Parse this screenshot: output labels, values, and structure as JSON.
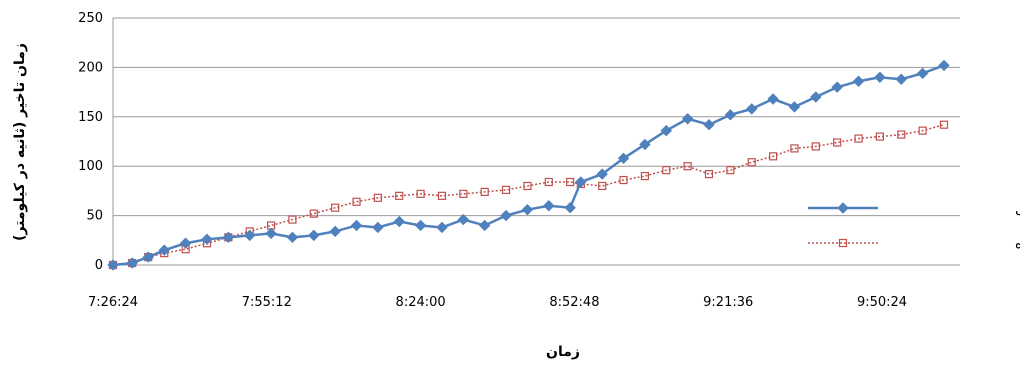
{
  "chart_data": {
    "type": "line",
    "xlabel": "زمان",
    "ylabel": "زمان تاخیر (ثانیه در کیلومتر)",
    "x_tick_labels": [
      "7:26:24",
      "7:55:12",
      "8:24:00",
      "8:52:48",
      "9:21:36",
      "9:50:24"
    ],
    "y_tick_labels": [
      "0",
      "50",
      "100",
      "150",
      "200",
      "250"
    ],
    "ylim": [
      0,
      250
    ],
    "xlim": [
      "7:26:24",
      "10:05:00"
    ],
    "grid": "horizontal",
    "legend_position": "right",
    "series": [
      {
        "name": "حالت بدون کنترل",
        "color": "#4F81BD",
        "marker": "diamond",
        "line": "solid",
        "x": [
          "7:26:24",
          "7:30:00",
          "7:33:00",
          "7:36:00",
          "7:40:00",
          "7:44:00",
          "7:48:00",
          "7:52:00",
          "7:56:00",
          "8:00:00",
          "8:04:00",
          "8:08:00",
          "8:12:00",
          "8:16:00",
          "8:20:00",
          "8:24:00",
          "8:28:00",
          "8:32:00",
          "8:36:00",
          "8:40:00",
          "8:44:00",
          "8:48:00",
          "8:52:00",
          "8:54:00",
          "8:58:00",
          "9:02:00",
          "9:06:00",
          "9:10:00",
          "9:14:00",
          "9:18:00",
          "9:22:00",
          "9:26:00",
          "9:30:00",
          "9:34:00",
          "9:38:00",
          "9:42:00",
          "9:46:00",
          "9:50:00",
          "9:54:00",
          "9:58:00",
          "10:02:00"
        ],
        "values": [
          0,
          2,
          8,
          15,
          22,
          26,
          28,
          30,
          32,
          28,
          30,
          34,
          40,
          38,
          44,
          40,
          38,
          46,
          40,
          50,
          56,
          60,
          58,
          84,
          92,
          108,
          122,
          136,
          148,
          142,
          152,
          158,
          168,
          160,
          170,
          180,
          186,
          190,
          188,
          194,
          202
        ]
      },
      {
        "name": "حالت کنترل شده",
        "color": "#C0504D",
        "marker": "square",
        "line": "dotted",
        "x": [
          "7:26:24",
          "7:30:00",
          "7:33:00",
          "7:36:00",
          "7:40:00",
          "7:44:00",
          "7:48:00",
          "7:52:00",
          "7:56:00",
          "8:00:00",
          "8:04:00",
          "8:08:00",
          "8:12:00",
          "8:16:00",
          "8:20:00",
          "8:24:00",
          "8:28:00",
          "8:32:00",
          "8:36:00",
          "8:40:00",
          "8:44:00",
          "8:48:00",
          "8:52:00",
          "8:54:00",
          "8:58:00",
          "9:02:00",
          "9:06:00",
          "9:10:00",
          "9:14:00",
          "9:18:00",
          "9:22:00",
          "9:26:00",
          "9:30:00",
          "9:34:00",
          "9:38:00",
          "9:42:00",
          "9:46:00",
          "9:50:00",
          "9:54:00",
          "9:58:00",
          "10:02:00"
        ],
        "values": [
          0,
          2,
          8,
          12,
          16,
          22,
          28,
          34,
          40,
          46,
          52,
          58,
          64,
          68,
          70,
          72,
          70,
          72,
          74,
          76,
          80,
          84,
          84,
          82,
          80,
          86,
          90,
          96,
          100,
          92,
          96,
          104,
          110,
          118,
          120,
          124,
          128,
          130,
          132,
          136,
          142
        ]
      }
    ]
  }
}
